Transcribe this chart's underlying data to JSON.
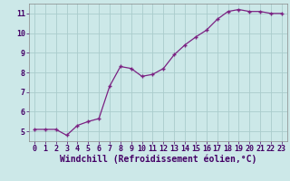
{
  "x": [
    0,
    1,
    2,
    3,
    4,
    5,
    6,
    7,
    8,
    9,
    10,
    11,
    12,
    13,
    14,
    15,
    16,
    17,
    18,
    19,
    20,
    21,
    22,
    23
  ],
  "y": [
    5.1,
    5.1,
    5.1,
    4.8,
    5.3,
    5.5,
    5.65,
    7.3,
    8.3,
    8.2,
    7.8,
    7.9,
    8.2,
    8.9,
    9.4,
    9.8,
    10.15,
    10.7,
    11.1,
    11.2,
    11.1,
    11.1,
    11.0,
    11.0
  ],
  "xlabel": "Windchill (Refroidissement éolien,°C)",
  "xlim": [
    -0.5,
    23.5
  ],
  "ylim": [
    4.5,
    11.5
  ],
  "yticks": [
    5,
    6,
    7,
    8,
    9,
    10,
    11
  ],
  "xticks": [
    0,
    1,
    2,
    3,
    4,
    5,
    6,
    7,
    8,
    9,
    10,
    11,
    12,
    13,
    14,
    15,
    16,
    17,
    18,
    19,
    20,
    21,
    22,
    23
  ],
  "line_color": "#7b2182",
  "marker": "+",
  "bg_color": "#cce8e8",
  "grid_color": "#aacccc",
  "tick_label_fontsize": 6.0,
  "xlabel_fontsize": 7.0,
  "spine_color": "#888888"
}
